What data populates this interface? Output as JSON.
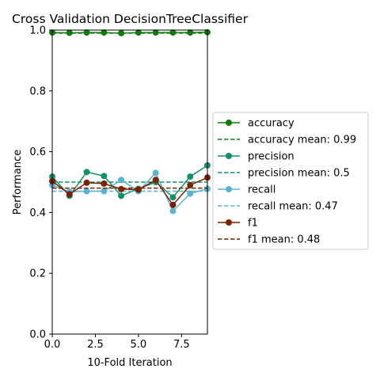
{
  "chart_data": {
    "type": "line",
    "title": "Cross Validation DecisionTreeClassifier",
    "xlabel": "10-Fold Iteration",
    "ylabel": "Performance",
    "xlim": [
      0,
      9
    ],
    "ylim": [
      0,
      1
    ],
    "x": [
      0,
      1,
      2,
      3,
      4,
      5,
      6,
      7,
      8,
      9
    ],
    "xticks": [
      0.0,
      2.5,
      5.0,
      7.5
    ],
    "xtick_labels": [
      "0.0",
      "2.5",
      "5.0",
      "7.5"
    ],
    "yticks": [
      0.0,
      0.2,
      0.4,
      0.6,
      0.8,
      1.0
    ],
    "ytick_labels": [
      "0.0",
      "0.2",
      "0.4",
      "0.6",
      "0.8",
      "1.0"
    ],
    "grid": false,
    "legend_position": "right-outside",
    "series": [
      {
        "name": "accuracy",
        "color": "#117a11",
        "values": [
          0.992,
          0.991,
          0.992,
          0.992,
          0.99,
          0.992,
          0.992,
          0.992,
          0.992,
          0.993
        ],
        "mean": 0.99,
        "mean_label": "accuracy mean: 0.99"
      },
      {
        "name": "precision",
        "color": "#148f6a",
        "values": [
          0.518,
          0.455,
          0.533,
          0.52,
          0.455,
          0.478,
          0.5,
          0.45,
          0.518,
          0.555
        ],
        "mean": 0.5,
        "mean_label": "precision mean: 0.5"
      },
      {
        "name": "recall",
        "color": "#5ab4d0",
        "values": [
          0.49,
          0.468,
          0.47,
          0.47,
          0.507,
          0.47,
          0.53,
          0.405,
          0.462,
          0.478
        ],
        "mean": 0.47,
        "mean_label": "recall mean: 0.47"
      },
      {
        "name": "f1",
        "color": "#7a2303",
        "values": [
          0.503,
          0.46,
          0.498,
          0.495,
          0.477,
          0.475,
          0.507,
          0.425,
          0.49,
          0.515
        ],
        "mean": 0.48,
        "mean_label": "f1 mean: 0.48"
      }
    ]
  }
}
